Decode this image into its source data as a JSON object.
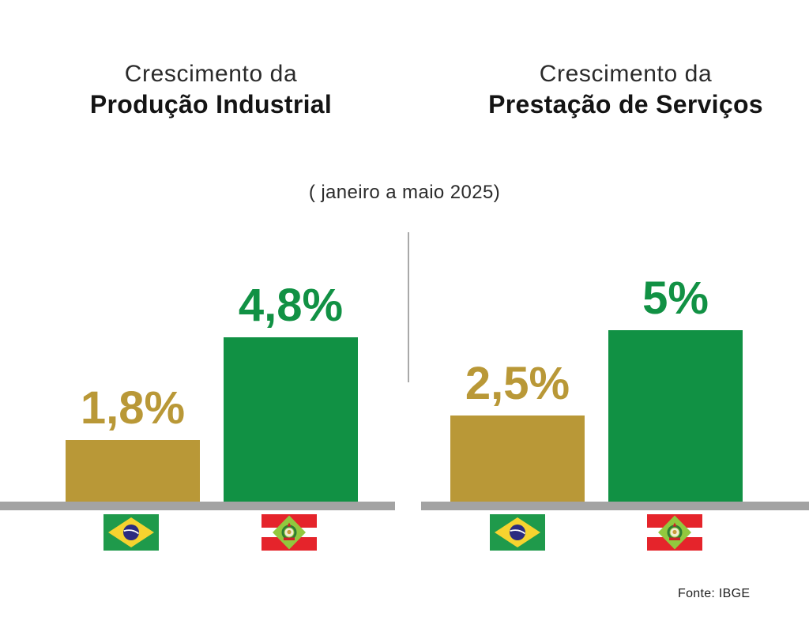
{
  "titles": {
    "left": {
      "line1": "Crescimento da",
      "line2": "Produção Industrial"
    },
    "right": {
      "line1": "Crescimento da",
      "line2": "Prestação de Serviços"
    }
  },
  "subtitle": "( janeiro a maio 2025)",
  "source": "Fonte: IBGE",
  "colors": {
    "gold": "#b99837",
    "green": "#119144",
    "baseline": "#a3a3a3",
    "divider": "#a9a9a9",
    "title_text": "#1a1a1a",
    "brazil_flag_green": "#1f9a4b",
    "brazil_flag_yellow": "#f6d32f",
    "brazil_flag_blue": "#2b2b80",
    "sc_flag_red": "#e5242b",
    "sc_flag_diamond_green": "#92c83e"
  },
  "icons": {
    "brazil_flag": "brazil-flag-icon",
    "santa_catarina_flag": "santa-catarina-flag-icon"
  },
  "chart_data": [
    {
      "type": "bar",
      "title": "Crescimento da Produção Industrial",
      "subtitle": "( janeiro a maio 2025)",
      "categories": [
        "Brasil",
        "Santa Catarina"
      ],
      "values": [
        1.8,
        4.8
      ],
      "value_labels": [
        "1,8%",
        "4,8%"
      ],
      "bar_colors": [
        "#b99837",
        "#119144"
      ],
      "xlabel": "",
      "ylabel": "",
      "ylim": [
        0,
        5.5
      ],
      "grid": false,
      "legend": "none (flags used as category markers)",
      "source": "Fonte: IBGE"
    },
    {
      "type": "bar",
      "title": "Crescimento da Prestação de Serviços",
      "subtitle": "( janeiro a maio 2025)",
      "categories": [
        "Brasil",
        "Santa Catarina"
      ],
      "values": [
        2.5,
        5
      ],
      "value_labels": [
        "2,5%",
        "5%"
      ],
      "bar_colors": [
        "#b99837",
        "#119144"
      ],
      "xlabel": "",
      "ylabel": "",
      "ylim": [
        0,
        5.5
      ],
      "grid": false,
      "legend": "none (flags used as category markers)",
      "source": "Fonte: IBGE"
    }
  ]
}
